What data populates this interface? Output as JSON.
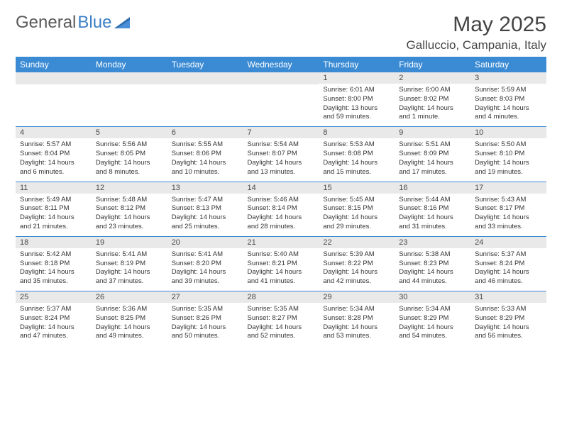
{
  "logo": {
    "text_gray": "General",
    "text_blue": "Blue"
  },
  "title": "May 2025",
  "location": "Galluccio, Campania, Italy",
  "colors": {
    "header_bg": "#3b8bd4",
    "header_text": "#ffffff",
    "daynum_bg": "#e9e9e9",
    "row_border": "#3b8bd4",
    "text": "#333333",
    "logo_gray": "#5a5a5a",
    "logo_blue": "#3b7fc4"
  },
  "typography": {
    "month_title_size": 30,
    "location_size": 17,
    "weekday_size": 12,
    "daynum_size": 11,
    "body_size": 9.5
  },
  "weekdays": [
    "Sunday",
    "Monday",
    "Tuesday",
    "Wednesday",
    "Thursday",
    "Friday",
    "Saturday"
  ],
  "weeks": [
    [
      {
        "n": "",
        "sunrise": "",
        "sunset": "",
        "daylight": ""
      },
      {
        "n": "",
        "sunrise": "",
        "sunset": "",
        "daylight": ""
      },
      {
        "n": "",
        "sunrise": "",
        "sunset": "",
        "daylight": ""
      },
      {
        "n": "",
        "sunrise": "",
        "sunset": "",
        "daylight": ""
      },
      {
        "n": "1",
        "sunrise": "Sunrise: 6:01 AM",
        "sunset": "Sunset: 8:00 PM",
        "daylight": "Daylight: 13 hours and 59 minutes."
      },
      {
        "n": "2",
        "sunrise": "Sunrise: 6:00 AM",
        "sunset": "Sunset: 8:02 PM",
        "daylight": "Daylight: 14 hours and 1 minute."
      },
      {
        "n": "3",
        "sunrise": "Sunrise: 5:59 AM",
        "sunset": "Sunset: 8:03 PM",
        "daylight": "Daylight: 14 hours and 4 minutes."
      }
    ],
    [
      {
        "n": "4",
        "sunrise": "Sunrise: 5:57 AM",
        "sunset": "Sunset: 8:04 PM",
        "daylight": "Daylight: 14 hours and 6 minutes."
      },
      {
        "n": "5",
        "sunrise": "Sunrise: 5:56 AM",
        "sunset": "Sunset: 8:05 PM",
        "daylight": "Daylight: 14 hours and 8 minutes."
      },
      {
        "n": "6",
        "sunrise": "Sunrise: 5:55 AM",
        "sunset": "Sunset: 8:06 PM",
        "daylight": "Daylight: 14 hours and 10 minutes."
      },
      {
        "n": "7",
        "sunrise": "Sunrise: 5:54 AM",
        "sunset": "Sunset: 8:07 PM",
        "daylight": "Daylight: 14 hours and 13 minutes."
      },
      {
        "n": "8",
        "sunrise": "Sunrise: 5:53 AM",
        "sunset": "Sunset: 8:08 PM",
        "daylight": "Daylight: 14 hours and 15 minutes."
      },
      {
        "n": "9",
        "sunrise": "Sunrise: 5:51 AM",
        "sunset": "Sunset: 8:09 PM",
        "daylight": "Daylight: 14 hours and 17 minutes."
      },
      {
        "n": "10",
        "sunrise": "Sunrise: 5:50 AM",
        "sunset": "Sunset: 8:10 PM",
        "daylight": "Daylight: 14 hours and 19 minutes."
      }
    ],
    [
      {
        "n": "11",
        "sunrise": "Sunrise: 5:49 AM",
        "sunset": "Sunset: 8:11 PM",
        "daylight": "Daylight: 14 hours and 21 minutes."
      },
      {
        "n": "12",
        "sunrise": "Sunrise: 5:48 AM",
        "sunset": "Sunset: 8:12 PM",
        "daylight": "Daylight: 14 hours and 23 minutes."
      },
      {
        "n": "13",
        "sunrise": "Sunrise: 5:47 AM",
        "sunset": "Sunset: 8:13 PM",
        "daylight": "Daylight: 14 hours and 25 minutes."
      },
      {
        "n": "14",
        "sunrise": "Sunrise: 5:46 AM",
        "sunset": "Sunset: 8:14 PM",
        "daylight": "Daylight: 14 hours and 28 minutes."
      },
      {
        "n": "15",
        "sunrise": "Sunrise: 5:45 AM",
        "sunset": "Sunset: 8:15 PM",
        "daylight": "Daylight: 14 hours and 29 minutes."
      },
      {
        "n": "16",
        "sunrise": "Sunrise: 5:44 AM",
        "sunset": "Sunset: 8:16 PM",
        "daylight": "Daylight: 14 hours and 31 minutes."
      },
      {
        "n": "17",
        "sunrise": "Sunrise: 5:43 AM",
        "sunset": "Sunset: 8:17 PM",
        "daylight": "Daylight: 14 hours and 33 minutes."
      }
    ],
    [
      {
        "n": "18",
        "sunrise": "Sunrise: 5:42 AM",
        "sunset": "Sunset: 8:18 PM",
        "daylight": "Daylight: 14 hours and 35 minutes."
      },
      {
        "n": "19",
        "sunrise": "Sunrise: 5:41 AM",
        "sunset": "Sunset: 8:19 PM",
        "daylight": "Daylight: 14 hours and 37 minutes."
      },
      {
        "n": "20",
        "sunrise": "Sunrise: 5:41 AM",
        "sunset": "Sunset: 8:20 PM",
        "daylight": "Daylight: 14 hours and 39 minutes."
      },
      {
        "n": "21",
        "sunrise": "Sunrise: 5:40 AM",
        "sunset": "Sunset: 8:21 PM",
        "daylight": "Daylight: 14 hours and 41 minutes."
      },
      {
        "n": "22",
        "sunrise": "Sunrise: 5:39 AM",
        "sunset": "Sunset: 8:22 PM",
        "daylight": "Daylight: 14 hours and 42 minutes."
      },
      {
        "n": "23",
        "sunrise": "Sunrise: 5:38 AM",
        "sunset": "Sunset: 8:23 PM",
        "daylight": "Daylight: 14 hours and 44 minutes."
      },
      {
        "n": "24",
        "sunrise": "Sunrise: 5:37 AM",
        "sunset": "Sunset: 8:24 PM",
        "daylight": "Daylight: 14 hours and 46 minutes."
      }
    ],
    [
      {
        "n": "25",
        "sunrise": "Sunrise: 5:37 AM",
        "sunset": "Sunset: 8:24 PM",
        "daylight": "Daylight: 14 hours and 47 minutes."
      },
      {
        "n": "26",
        "sunrise": "Sunrise: 5:36 AM",
        "sunset": "Sunset: 8:25 PM",
        "daylight": "Daylight: 14 hours and 49 minutes."
      },
      {
        "n": "27",
        "sunrise": "Sunrise: 5:35 AM",
        "sunset": "Sunset: 8:26 PM",
        "daylight": "Daylight: 14 hours and 50 minutes."
      },
      {
        "n": "28",
        "sunrise": "Sunrise: 5:35 AM",
        "sunset": "Sunset: 8:27 PM",
        "daylight": "Daylight: 14 hours and 52 minutes."
      },
      {
        "n": "29",
        "sunrise": "Sunrise: 5:34 AM",
        "sunset": "Sunset: 8:28 PM",
        "daylight": "Daylight: 14 hours and 53 minutes."
      },
      {
        "n": "30",
        "sunrise": "Sunrise: 5:34 AM",
        "sunset": "Sunset: 8:29 PM",
        "daylight": "Daylight: 14 hours and 54 minutes."
      },
      {
        "n": "31",
        "sunrise": "Sunrise: 5:33 AM",
        "sunset": "Sunset: 8:29 PM",
        "daylight": "Daylight: 14 hours and 56 minutes."
      }
    ]
  ]
}
